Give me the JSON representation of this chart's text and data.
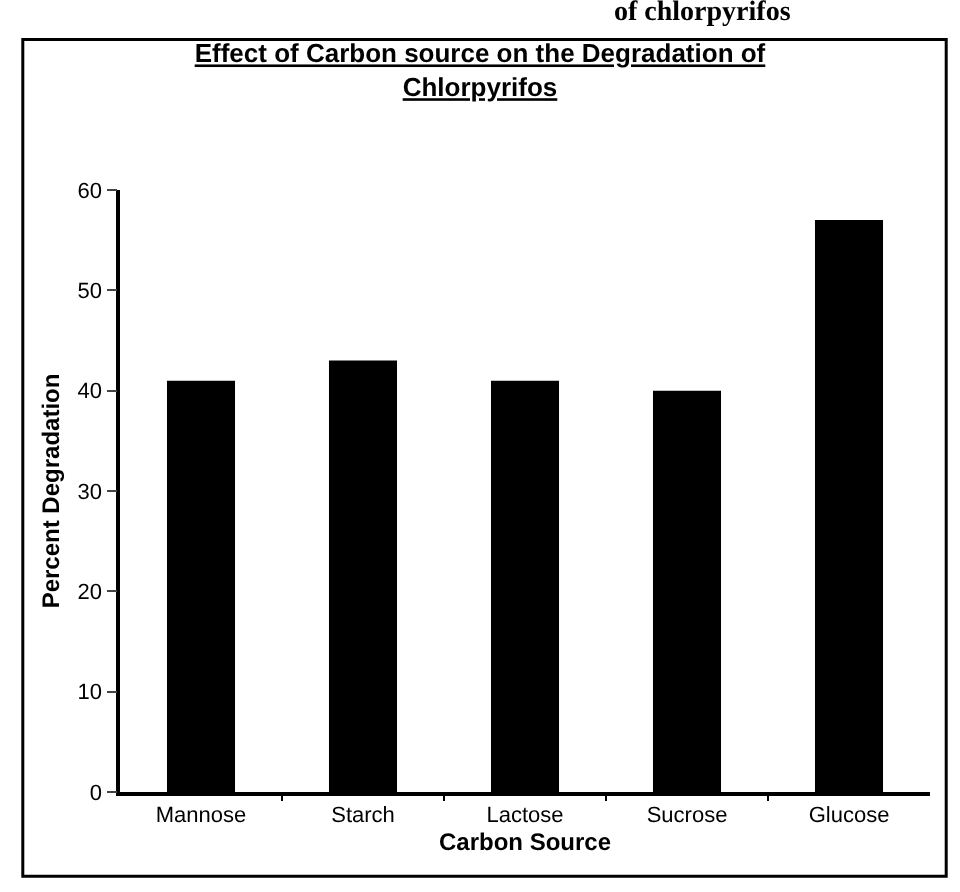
{
  "chart_data": {
    "type": "bar",
    "title": "Effect of Carbon source on the Degradation of\nChlorpyrifos",
    "xlabel": "Carbon Source",
    "ylabel": "Percent Degradation",
    "annotations": [
      "of chlorpyrifos"
    ],
    "categories": [
      "Mannose",
      "Starch",
      "Lactose",
      "Sucrose",
      "Glucose"
    ],
    "values": [
      41,
      43,
      41,
      40,
      57
    ],
    "color": "#000000",
    "ylim": [
      0,
      60
    ],
    "yticks": [
      0,
      10,
      20,
      30,
      40,
      50,
      60
    ]
  }
}
